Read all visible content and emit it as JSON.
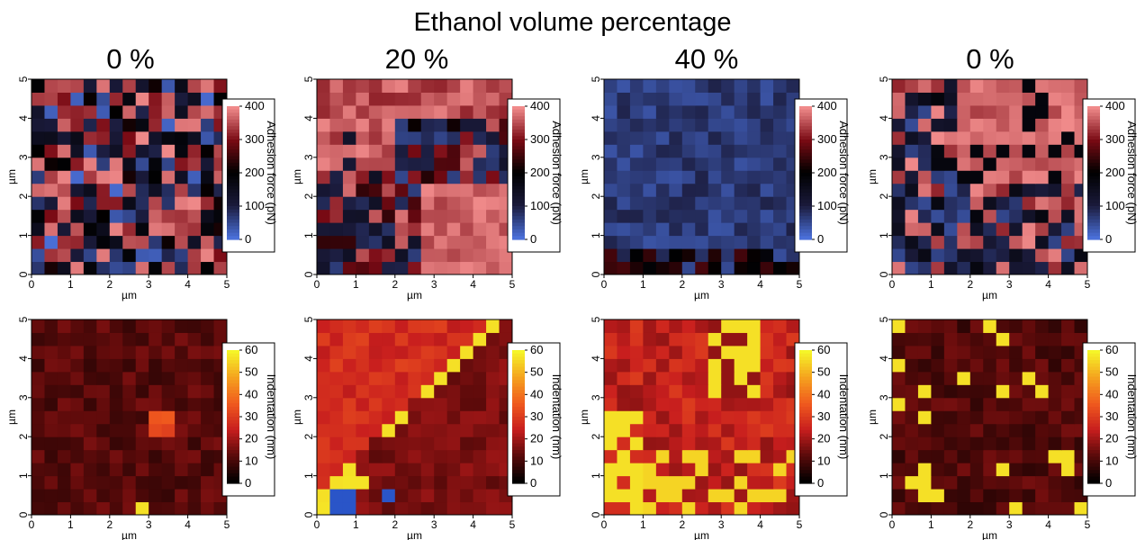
{
  "figure": {
    "title": "Ethanol volume percentage",
    "columns": [
      "0 %",
      "20 %",
      "40 %",
      "0 %"
    ]
  },
  "colors": {
    "adhesion_scale": [
      "#4a6fd8",
      "#1a1a3a",
      "#000000",
      "#7a0a14",
      "#f08a8a"
    ],
    "indentation_scale": [
      "#000000",
      "#5a0a0a",
      "#c81e1e",
      "#f05a1e",
      "#f5a21e",
      "#f5f528"
    ]
  },
  "chart_data": [
    {
      "type": "heatmap",
      "row": "adhesion",
      "column_title": "0 %",
      "xlabel": "µm",
      "ylabel": "µm",
      "xlim": [
        0,
        5
      ],
      "ylim": [
        0,
        5
      ],
      "xticks": [
        "0",
        "1",
        "2",
        "3",
        "4",
        "5"
      ],
      "yticks": [
        "0",
        "1",
        "2",
        "3",
        "4",
        "5"
      ],
      "grid_size": 15,
      "colorbar": {
        "label": "Adhesion force (pN)",
        "range": [
          0,
          400
        ],
        "ticks": [
          "0",
          "100",
          "200",
          "300",
          "400"
        ]
      },
      "pattern": "random mix of high and low adhesion"
    },
    {
      "type": "heatmap",
      "row": "adhesion",
      "column_title": "20 %",
      "xlabel": "µm",
      "ylabel": "µm",
      "xlim": [
        0,
        5
      ],
      "ylim": [
        0,
        5
      ],
      "xticks": [
        "0",
        "1",
        "2",
        "3",
        "4",
        "5"
      ],
      "yticks": [
        "0",
        "1",
        "2",
        "3",
        "4",
        "5"
      ],
      "grid_size": 15,
      "colorbar": {
        "label": "Adhesion force (pN)",
        "range": [
          0,
          400
        ],
        "ticks": [
          "0",
          "100",
          "200",
          "300",
          "400"
        ]
      },
      "pattern": "high adhesion top-left and bottom-right, low adhesion band in middle"
    },
    {
      "type": "heatmap",
      "row": "adhesion",
      "column_title": "40 %",
      "xlabel": "µm",
      "ylabel": "µm",
      "xlim": [
        0,
        5
      ],
      "ylim": [
        0,
        5
      ],
      "xticks": [
        "0",
        "1",
        "2",
        "3",
        "4",
        "5"
      ],
      "yticks": [
        "0",
        "1",
        "2",
        "3",
        "4",
        "5"
      ],
      "grid_size": 15,
      "colorbar": {
        "label": "Adhesion force (pN)",
        "range": [
          0,
          400
        ],
        "ticks": [
          "0",
          "100",
          "200",
          "300",
          "400"
        ]
      },
      "pattern": "mostly low adhesion (~50-100 pN), darker band near bottom"
    },
    {
      "type": "heatmap",
      "row": "adhesion",
      "column_title": "0 %",
      "xlabel": "µm",
      "ylabel": "µm",
      "xlim": [
        0,
        5
      ],
      "ylim": [
        0,
        5
      ],
      "xticks": [
        "0",
        "1",
        "2",
        "3",
        "4",
        "5"
      ],
      "yticks": [
        "0",
        "1",
        "2",
        "3",
        "4",
        "5"
      ],
      "grid_size": 15,
      "colorbar": {
        "label": "Adhesion force (pN)",
        "range": [
          0,
          400
        ],
        "ticks": [
          "0",
          "100",
          "200",
          "300",
          "400"
        ]
      },
      "pattern": "high adhesion top-right, mixed lower-left"
    },
    {
      "type": "heatmap",
      "row": "indentation",
      "xlabel": "µm",
      "ylabel": "µm",
      "xlim": [
        0,
        5
      ],
      "ylim": [
        0,
        5
      ],
      "xticks": [
        "0",
        "1",
        "2",
        "3",
        "4",
        "5"
      ],
      "yticks": [
        "0",
        "1",
        "2",
        "3",
        "4",
        "5"
      ],
      "grid_size": 15,
      "colorbar": {
        "label": "Indentation (nm)",
        "range": [
          0,
          60
        ],
        "ticks": [
          "0",
          "10",
          "20",
          "30",
          "40",
          "50",
          "60"
        ]
      },
      "pattern": "mostly low indentation (~10 nm), hot spot near (3.2, 2.6)"
    },
    {
      "type": "heatmap",
      "row": "indentation",
      "xlabel": "µm",
      "ylabel": "µm",
      "xlim": [
        0,
        5
      ],
      "ylim": [
        0,
        5
      ],
      "xticks": [
        "0",
        "1",
        "2",
        "3",
        "4",
        "5"
      ],
      "yticks": [
        "0",
        "1",
        "2",
        "3",
        "4",
        "5"
      ],
      "grid_size": 15,
      "colorbar": {
        "label": "Indentation (nm)",
        "range": [
          0,
          60
        ],
        "ticks": [
          "0",
          "10",
          "20",
          "30",
          "40",
          "50",
          "60"
        ]
      },
      "pattern": "higher indentation top-left (~30 nm), diagonal yellow boundary, lower right side"
    },
    {
      "type": "heatmap",
      "row": "indentation",
      "xlabel": "µm",
      "ylabel": "µm",
      "xlim": [
        0,
        5
      ],
      "ylim": [
        0,
        5
      ],
      "xticks": [
        "0",
        "1",
        "2",
        "3",
        "4",
        "5"
      ],
      "yticks": [
        "0",
        "1",
        "2",
        "3",
        "4",
        "5"
      ],
      "grid_size": 15,
      "colorbar": {
        "label": "Indentation (nm)",
        "range": [
          0,
          60
        ],
        "ticks": [
          "0",
          "10",
          "20",
          "30",
          "40",
          "50",
          "60"
        ]
      },
      "pattern": "high indentation bottom-left and top-center yellow regions, red background"
    },
    {
      "type": "heatmap",
      "row": "indentation",
      "xlabel": "µm",
      "ylabel": "µm",
      "xlim": [
        0,
        5
      ],
      "ylim": [
        0,
        5
      ],
      "xticks": [
        "0",
        "1",
        "2",
        "3",
        "4",
        "5"
      ],
      "yticks": [
        "0",
        "1",
        "2",
        "3",
        "4",
        "5"
      ],
      "grid_size": 15,
      "colorbar": {
        "label": "Indentation (nm)",
        "range": [
          0,
          60
        ],
        "ticks": [
          "0",
          "10",
          "20",
          "30",
          "40",
          "50",
          "60"
        ]
      },
      "pattern": "mostly low indentation with scattered yellow spots"
    }
  ]
}
